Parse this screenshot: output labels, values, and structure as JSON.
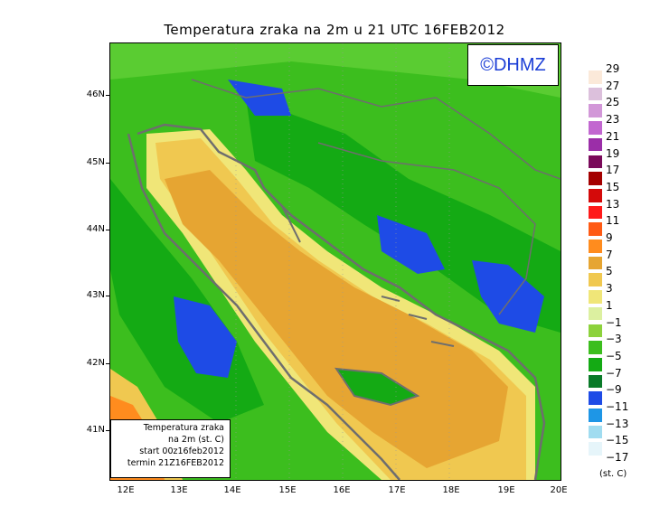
{
  "title": "Temperatura zraka na 2m u 21 UTC 16FEB2012",
  "logo": "©DHMZ",
  "info": {
    "line1": "Temperatura zraka",
    "line2": "na 2m (st. C)",
    "line3": "start 00z16feb2012",
    "line4": "termin 21Z16FEB2012"
  },
  "lat_labels": [
    "46N",
    "45N",
    "44N",
    "43N",
    "42N",
    "41N"
  ],
  "lon_labels": [
    "12E",
    "13E",
    "14E",
    "15E",
    "16E",
    "17E",
    "18E",
    "19E",
    "20E"
  ],
  "legend": {
    "labels": [
      "29",
      "27",
      "25",
      "23",
      "21",
      "19",
      "17",
      "15",
      "13",
      "11",
      "9",
      "7",
      "5",
      "3",
      "1",
      "−1",
      "−3",
      "−5",
      "−7",
      "−9",
      "−11",
      "−13",
      "−15",
      "−17"
    ],
    "colors": [
      "#fbe9d9",
      "#dcc0dc",
      "#d297d8",
      "#c267d0",
      "#9b2ea8",
      "#7a0a5a",
      "#a40000",
      "#d40a0a",
      "#ff1a1a",
      "#ff5a14",
      "#ff8c1e",
      "#e6a532",
      "#f0c850",
      "#f0e678",
      "#dcf0a0",
      "#8cd23c",
      "#3cbe1e",
      "#14aa14",
      "#0a7a28",
      "#1e4be6",
      "#1e96e6",
      "#a0dcf0",
      "#e6f5fa"
    ],
    "units": "(st. C)"
  },
  "palette": {
    "sea_warm": "#e6a532",
    "sea_mid": "#f0c850",
    "sea_light": "#f0e678",
    "land_green": "#3cbe1e",
    "land_dark": "#14aa14",
    "cold_blue": "#1e4be6",
    "coast": "#6e6e6e"
  }
}
